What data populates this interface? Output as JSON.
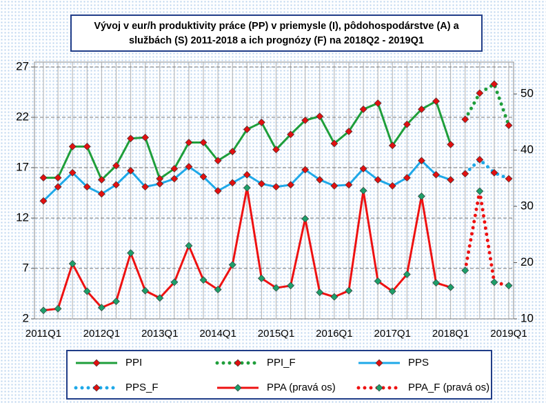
{
  "chart_data": {
    "type": "line",
    "title_lines": [
      "Vývoj v eur/h produktivity práce (PP) v priemysle (I), pôdohospodárstve (A) a",
      "službách (S) 2011-2018 a ich prognózy (F) na 2018Q2 - 2019Q1"
    ],
    "categories": [
      "2011Q1",
      null,
      null,
      null,
      "2012Q1",
      null,
      null,
      null,
      "2013Q1",
      null,
      null,
      null,
      "2014Q1",
      null,
      null,
      null,
      "2015Q1",
      null,
      null,
      null,
      "2016Q1",
      null,
      null,
      null,
      "2017Q1",
      null,
      null,
      null,
      "2018Q1",
      null,
      null,
      null,
      "2019Q1"
    ],
    "ylim": [
      2,
      27
    ],
    "yticks": [
      2,
      7,
      12,
      17,
      22,
      27
    ],
    "y2lim": [
      10,
      54.8
    ],
    "y2ticks": [
      10,
      20,
      30,
      40,
      50
    ],
    "grid": true,
    "series": [
      {
        "name": "PPI",
        "color": "#1e9e3a",
        "marker_color": "#e01010",
        "style": "solid",
        "values": [
          16.0,
          16.0,
          19.1,
          19.1,
          15.8,
          17.2,
          19.9,
          20.0,
          15.9,
          16.9,
          19.5,
          19.5,
          17.7,
          18.6,
          20.8,
          21.5,
          18.8,
          20.3,
          21.7,
          22.1,
          19.4,
          20.6,
          22.8,
          23.4,
          19.2,
          21.3,
          22.8,
          23.6,
          19.3,
          null,
          null,
          null,
          null
        ]
      },
      {
        "name": "PPI_F",
        "color": "#1e9e3a",
        "marker_color": "#e01010",
        "style": "dotted",
        "values": [
          null,
          null,
          null,
          null,
          null,
          null,
          null,
          null,
          null,
          null,
          null,
          null,
          null,
          null,
          null,
          null,
          null,
          null,
          null,
          null,
          null,
          null,
          null,
          null,
          null,
          null,
          null,
          null,
          null,
          21.8,
          24.4,
          25.3,
          21.2
        ]
      },
      {
        "name": "PPS",
        "color": "#1ea8e8",
        "marker_color": "#e01010",
        "style": "solid",
        "values": [
          13.7,
          15.1,
          16.5,
          15.1,
          14.4,
          15.3,
          16.7,
          15.1,
          15.4,
          15.9,
          17.1,
          16.1,
          14.7,
          15.5,
          16.3,
          15.4,
          15.1,
          15.3,
          16.8,
          15.8,
          15.2,
          15.3,
          16.9,
          15.8,
          15.2,
          16.0,
          17.7,
          16.3,
          15.8,
          null,
          null,
          null,
          null
        ]
      },
      {
        "name": "PPS_F",
        "color": "#1ea8e8",
        "marker_color": "#e01010",
        "style": "dotted",
        "values": [
          null,
          null,
          null,
          null,
          null,
          null,
          null,
          null,
          null,
          null,
          null,
          null,
          null,
          null,
          null,
          null,
          null,
          null,
          null,
          null,
          null,
          null,
          null,
          null,
          null,
          null,
          null,
          null,
          null,
          16.4,
          17.8,
          16.5,
          15.9
        ]
      },
      {
        "name": "PPA (pravá os)",
        "color": "#ee1111",
        "marker_color": "#1e9e6a",
        "style": "solid",
        "axis": "y2",
        "values": [
          11.5,
          11.8,
          19.8,
          14.9,
          12.0,
          13.1,
          21.7,
          15.0,
          13.7,
          16.5,
          23.0,
          16.9,
          15.2,
          19.6,
          33.3,
          17.2,
          15.5,
          15.9,
          27.8,
          14.7,
          13.9,
          15.0,
          32.8,
          16.7,
          14.9,
          17.9,
          31.8,
          16.4,
          15.6,
          null,
          null,
          null,
          null
        ]
      },
      {
        "name": "PPA_F (pravá os)",
        "color": "#ee1111",
        "marker_color": "#1e9e6a",
        "style": "dotted",
        "axis": "y2",
        "values": [
          null,
          null,
          null,
          null,
          null,
          null,
          null,
          null,
          null,
          null,
          null,
          null,
          null,
          null,
          null,
          null,
          null,
          null,
          null,
          null,
          null,
          null,
          null,
          null,
          null,
          null,
          null,
          null,
          null,
          18.6,
          32.7,
          16.5,
          15.9
        ]
      }
    ]
  }
}
